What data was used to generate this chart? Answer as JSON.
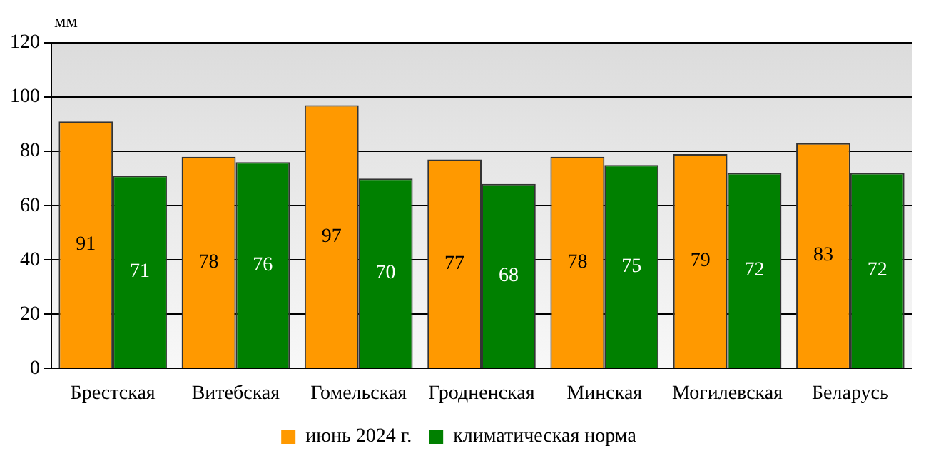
{
  "chart_data": {
    "type": "bar",
    "ylabel": "мм",
    "categories": [
      "Брестская",
      "Витебская",
      "Гомельская",
      "Гродненская",
      "Минская",
      "Могилевская",
      "Беларусь"
    ],
    "series": [
      {
        "name": "июнь 2024 г.",
        "color": "#ff9900",
        "values": [
          91,
          78,
          97,
          77,
          78,
          79,
          83
        ]
      },
      {
        "name": "климатическая норма",
        "color": "#008000",
        "values": [
          71,
          76,
          70,
          68,
          75,
          72,
          72
        ]
      }
    ],
    "ylim": [
      0,
      120
    ],
    "yticks": [
      0,
      20,
      40,
      60,
      80,
      100,
      120
    ],
    "grid": "y",
    "legend": "bottom",
    "data_labels": true
  }
}
